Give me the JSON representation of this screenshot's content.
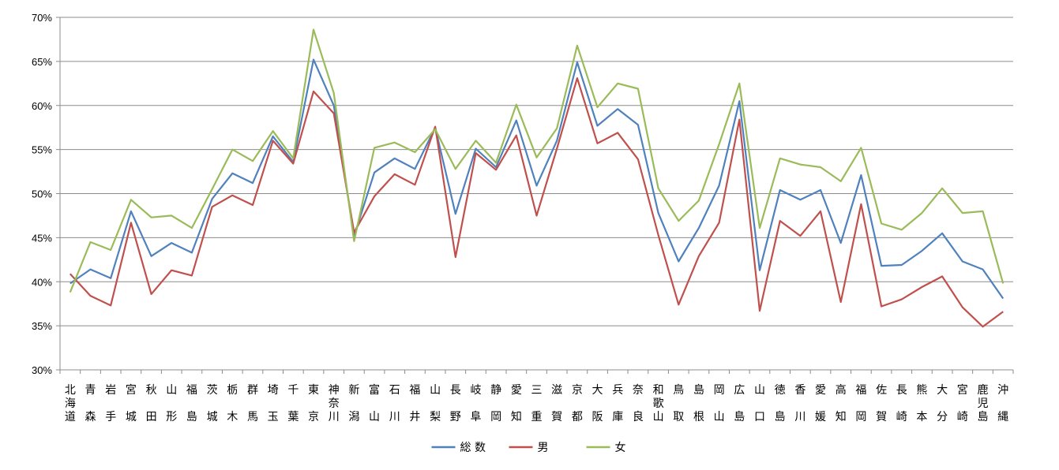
{
  "chart_data": {
    "type": "line",
    "title": "",
    "xlabel": "",
    "ylabel": "",
    "ylim": [
      30,
      70
    ],
    "yticks": [
      "30%",
      "35%",
      "40%",
      "45%",
      "50%",
      "55%",
      "60%",
      "65%",
      "70%"
    ],
    "grid": "horizontal",
    "legend_position": "bottom",
    "categories": [
      "北海道",
      "青森",
      "岩手",
      "宮城",
      "秋田",
      "山形",
      "福島",
      "茨城",
      "栃木",
      "群馬",
      "埼玉",
      "千葉",
      "東京",
      "神奈川",
      "新潟",
      "富山",
      "石川",
      "福井",
      "山梨",
      "長野",
      "岐阜",
      "静岡",
      "愛知",
      "三重",
      "滋賀",
      "京都",
      "大阪",
      "兵庫",
      "奈良",
      "和歌山",
      "鳥取",
      "島根",
      "岡山",
      "広島",
      "山口",
      "徳島",
      "香川",
      "愛媛",
      "高知",
      "福岡",
      "佐賀",
      "長崎",
      "熊本",
      "大分",
      "宮崎",
      "鹿児島",
      "沖縄"
    ],
    "series": [
      {
        "name": "総 数",
        "color": "#4f81bd",
        "values": [
          39.8,
          41.4,
          40.4,
          48.0,
          42.9,
          44.4,
          43.3,
          49.4,
          52.3,
          51.2,
          56.5,
          53.6,
          65.2,
          60.0,
          45.2,
          52.4,
          54.0,
          52.8,
          57.5,
          47.7,
          55.1,
          53.0,
          58.3,
          50.9,
          56.0,
          64.9,
          57.7,
          59.6,
          57.8,
          47.8,
          42.3,
          46.1,
          50.9,
          60.5,
          41.3,
          50.4,
          49.3,
          50.4,
          44.4,
          52.1,
          41.8,
          41.9,
          43.5,
          45.5,
          42.3,
          41.4,
          38.1
        ]
      },
      {
        "name": "男",
        "color": "#c0504d",
        "values": [
          40.9,
          38.4,
          37.3,
          46.7,
          38.6,
          41.3,
          40.7,
          48.5,
          49.8,
          48.7,
          56.0,
          53.4,
          61.6,
          59.1,
          45.6,
          49.7,
          52.2,
          51.0,
          57.6,
          42.8,
          54.6,
          52.7,
          56.6,
          47.5,
          55.1,
          63.1,
          55.7,
          56.9,
          53.9,
          45.3,
          37.4,
          42.9,
          46.7,
          58.4,
          36.7,
          46.9,
          45.2,
          48.0,
          37.7,
          48.8,
          37.2,
          38.0,
          39.4,
          40.6,
          37.1,
          34.9,
          36.6
        ]
      },
      {
        "name": "女",
        "color": "#9bbb59",
        "values": [
          38.8,
          44.5,
          43.6,
          49.3,
          47.3,
          47.5,
          46.1,
          50.5,
          55.0,
          53.7,
          57.1,
          54.0,
          68.6,
          61.4,
          44.6,
          55.2,
          55.8,
          54.7,
          57.3,
          52.8,
          56.0,
          53.5,
          60.1,
          54.1,
          57.4,
          66.8,
          59.8,
          62.5,
          61.9,
          50.6,
          46.9,
          49.2,
          55.6,
          62.5,
          46.1,
          54.0,
          53.3,
          53.0,
          51.4,
          55.2,
          46.6,
          45.9,
          47.8,
          50.6,
          47.8,
          48.0,
          39.8
        ]
      }
    ],
    "category_labels": [
      [
        "北",
        "海",
        "道"
      ],
      [
        "青",
        "",
        "森"
      ],
      [
        "岩",
        "",
        "手"
      ],
      [
        "宮",
        "",
        "城"
      ],
      [
        "秋",
        "",
        "田"
      ],
      [
        "山",
        "",
        "形"
      ],
      [
        "福",
        "",
        "島"
      ],
      [
        "茨",
        "",
        "城"
      ],
      [
        "栃",
        "",
        "木"
      ],
      [
        "群",
        "",
        "馬"
      ],
      [
        "埼",
        "",
        "玉"
      ],
      [
        "千",
        "",
        "葉"
      ],
      [
        "東",
        "",
        "京"
      ],
      [
        "神",
        "奈",
        "川"
      ],
      [
        "新",
        "",
        "潟"
      ],
      [
        "富",
        "",
        "山"
      ],
      [
        "石",
        "",
        "川"
      ],
      [
        "福",
        "",
        "井"
      ],
      [
        "山",
        "",
        "梨"
      ],
      [
        "長",
        "",
        "野"
      ],
      [
        "岐",
        "",
        "阜"
      ],
      [
        "静",
        "",
        "岡"
      ],
      [
        "愛",
        "",
        "知"
      ],
      [
        "三",
        "",
        "重"
      ],
      [
        "滋",
        "",
        "賀"
      ],
      [
        "京",
        "",
        "都"
      ],
      [
        "大",
        "",
        "阪"
      ],
      [
        "兵",
        "",
        "庫"
      ],
      [
        "奈",
        "",
        "良"
      ],
      [
        "和",
        "歌",
        "山"
      ],
      [
        "鳥",
        "",
        "取"
      ],
      [
        "島",
        "",
        "根"
      ],
      [
        "岡",
        "",
        "山"
      ],
      [
        "広",
        "",
        "島"
      ],
      [
        "山",
        "",
        "口"
      ],
      [
        "徳",
        "",
        "島"
      ],
      [
        "香",
        "",
        "川"
      ],
      [
        "愛",
        "",
        "媛"
      ],
      [
        "高",
        "",
        "知"
      ],
      [
        "福",
        "",
        "岡"
      ],
      [
        "佐",
        "",
        "賀"
      ],
      [
        "長",
        "",
        "崎"
      ],
      [
        "熊",
        "",
        "本"
      ],
      [
        "大",
        "",
        "分"
      ],
      [
        "宮",
        "",
        "崎"
      ],
      [
        "鹿",
        "児",
        "島"
      ],
      [
        "沖",
        "",
        "縄"
      ]
    ]
  }
}
